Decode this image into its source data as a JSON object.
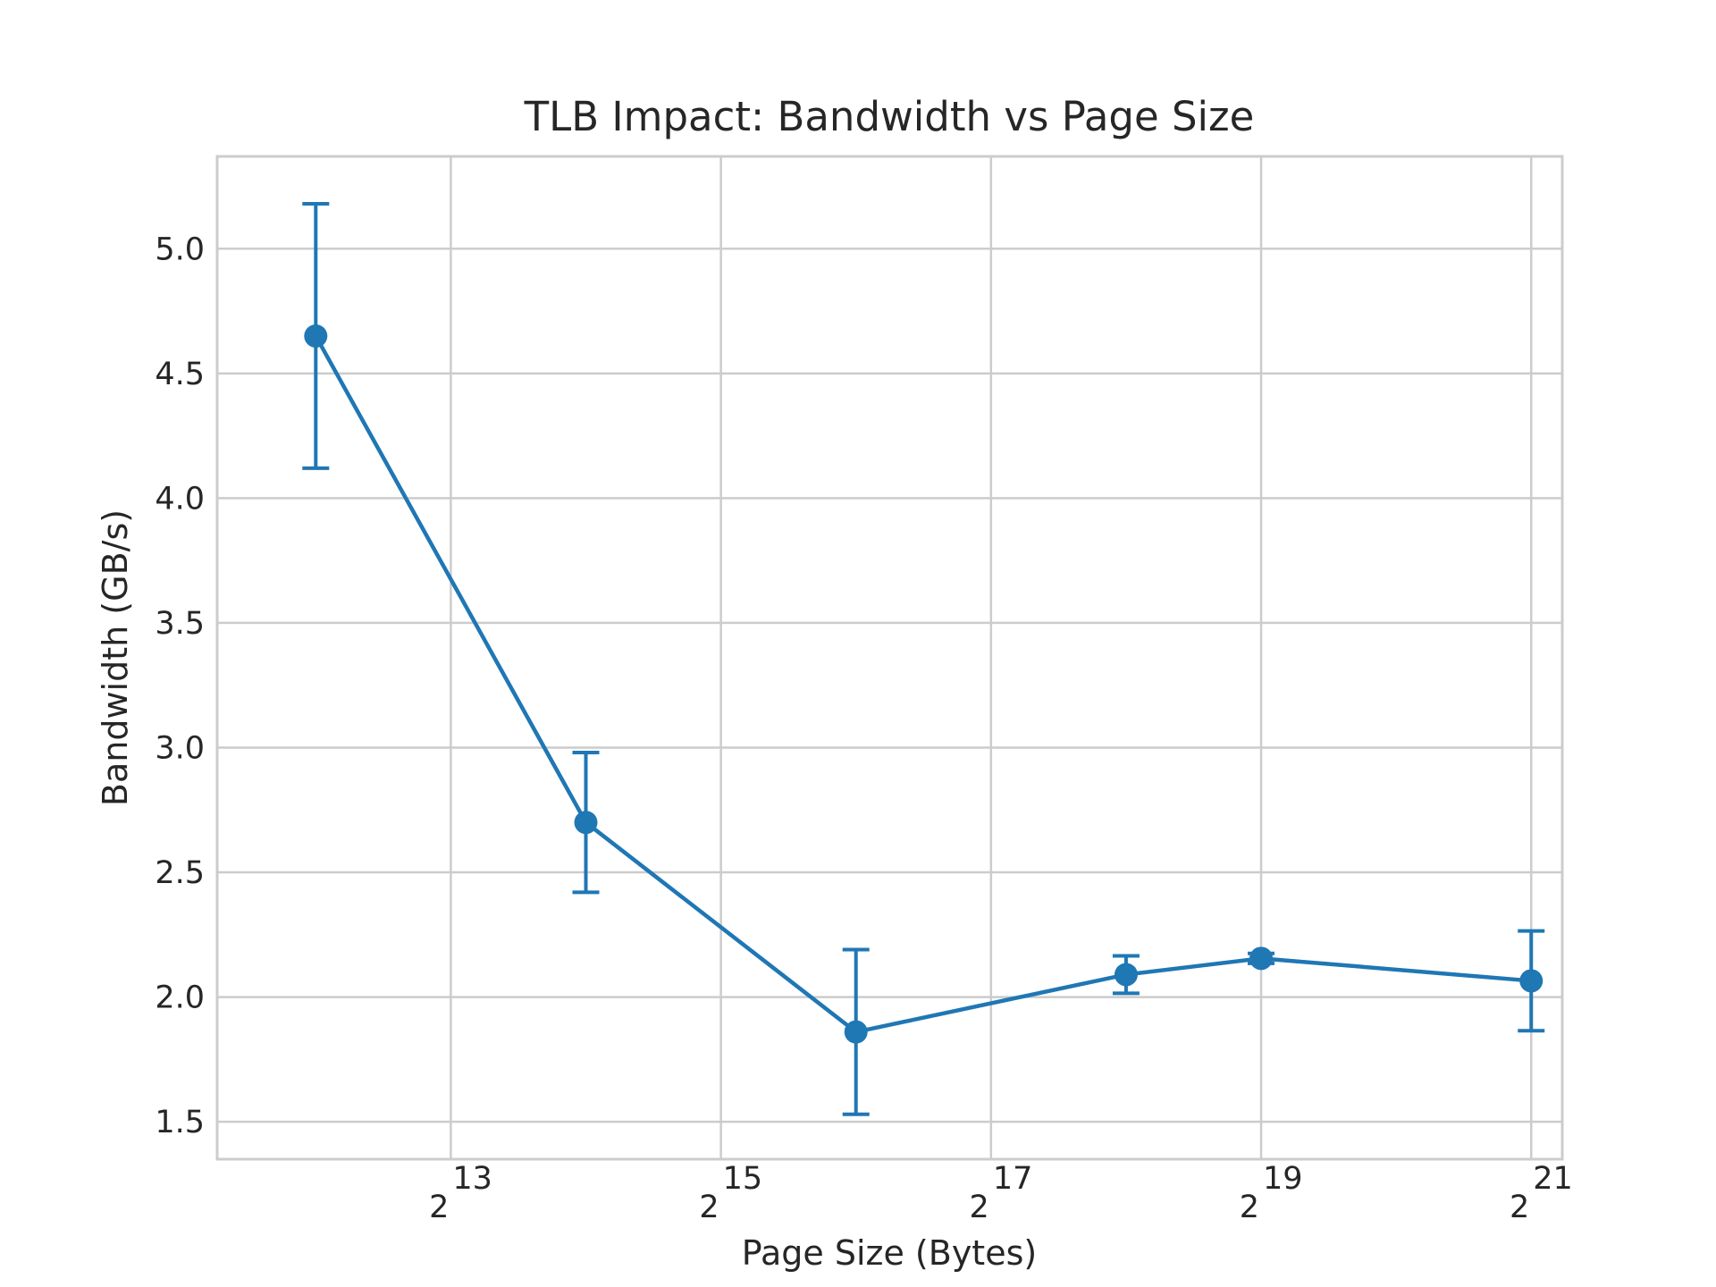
{
  "chart_data": {
    "type": "line",
    "title": "TLB Impact: Bandwidth vs Page Size",
    "xlabel": "Page Size (Bytes)",
    "ylabel": "Bandwidth (GB/s)",
    "x_scale": "log2",
    "x": [
      4096,
      16384,
      65536,
      262144,
      524288,
      2097152
    ],
    "series": [
      {
        "values": [
          4.65,
          2.7,
          1.86,
          2.09,
          2.155,
          2.065
        ],
        "error": [
          0.53,
          0.28,
          0.33,
          0.075,
          0.02,
          0.2
        ],
        "color": "#1f77b4",
        "marker": "circle"
      }
    ],
    "xticks": [
      {
        "base": "2",
        "exp": "13",
        "value": 8192
      },
      {
        "base": "2",
        "exp": "15",
        "value": 32768
      },
      {
        "base": "2",
        "exp": "17",
        "value": 131072
      },
      {
        "base": "2",
        "exp": "19",
        "value": 524288
      },
      {
        "base": "2",
        "exp": "21",
        "value": 2097152
      }
    ],
    "yticks": [
      "1.5",
      "2.0",
      "2.5",
      "3.0",
      "3.5",
      "4.0",
      "4.5",
      "5.0"
    ],
    "xlim_exp": [
      11.27,
      21.23
    ],
    "ylim": [
      1.35,
      5.37
    ],
    "grid": true,
    "legend": "none"
  }
}
